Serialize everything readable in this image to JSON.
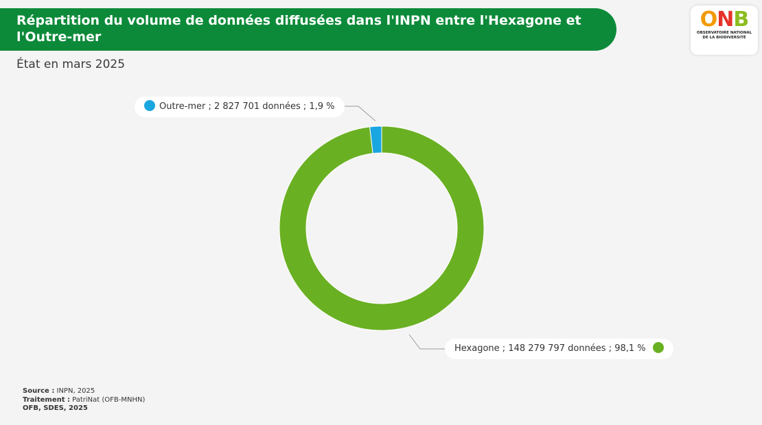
{
  "title": "Répartition du volume de données diffusées dans l'INPN entre l'Hexagone et l'Outre-mer",
  "subtitle": "État en mars 2025",
  "logo": {
    "o": "O",
    "n": "N",
    "b": "B",
    "line1": "OBSERVATOIRE NATIONAL",
    "line2": "DE LA BIODIVERSITÉ"
  },
  "chart_data": {
    "type": "pie",
    "donut": true,
    "slices": [
      {
        "name": "Outre-mer",
        "label": "Outre-mer ; 2 827 701 données ; 1,9 %",
        "value": 2827701,
        "percent": 1.9,
        "color": "#1aa6e0"
      },
      {
        "name": "Hexagone",
        "label": "Hexagone ; 148 279 797 données ; 98,1 %",
        "value": 148279797,
        "percent": 98.1,
        "color": "#6ab023"
      }
    ]
  },
  "footer": {
    "source_label": "Source :",
    "source_value": " INPN, 2025",
    "treatment_label": "Traitement :",
    "treatment_value": " PatriNat (OFB-MNHN)",
    "credit": "OFB, SDES, 2025"
  }
}
